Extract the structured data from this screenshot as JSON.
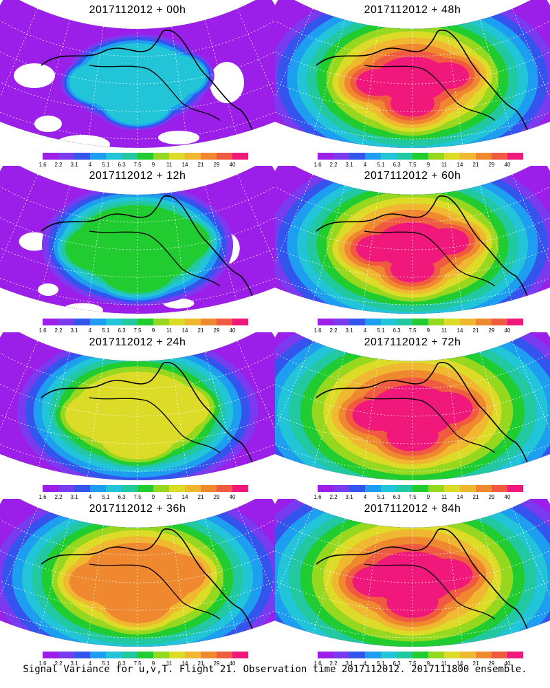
{
  "panels": [
    {
      "title": "2017112012 + 00h"
    },
    {
      "title": "2017112012 + 48h"
    },
    {
      "title": "2017112012 + 12h"
    },
    {
      "title": "2017112012 + 60h"
    },
    {
      "title": "2017112012 + 24h"
    },
    {
      "title": "2017112012 + 72h"
    },
    {
      "title": "2017112012 + 36h"
    },
    {
      "title": "2017112012 + 84h"
    }
  ],
  "colorbar": {
    "tick_labels": [
      "1.6",
      "2.2",
      "3.1",
      "4",
      "5.1",
      "6.3",
      "7.5",
      "9",
      "11",
      "14",
      "21",
      "29",
      "40"
    ],
    "colors": [
      "#9b1fe8",
      "#7a3af0",
      "#3355ee",
      "#1e9ef0",
      "#22c4d8",
      "#22c8a0",
      "#20cc30",
      "#96d820",
      "#dcdc28",
      "#f0b830",
      "#f08830",
      "#f05a40",
      "#f0187a"
    ]
  },
  "footer": "Signal Variance for u,v,T. Flight 21. Observation time 2017112012. 2017111800 ensemble."
}
